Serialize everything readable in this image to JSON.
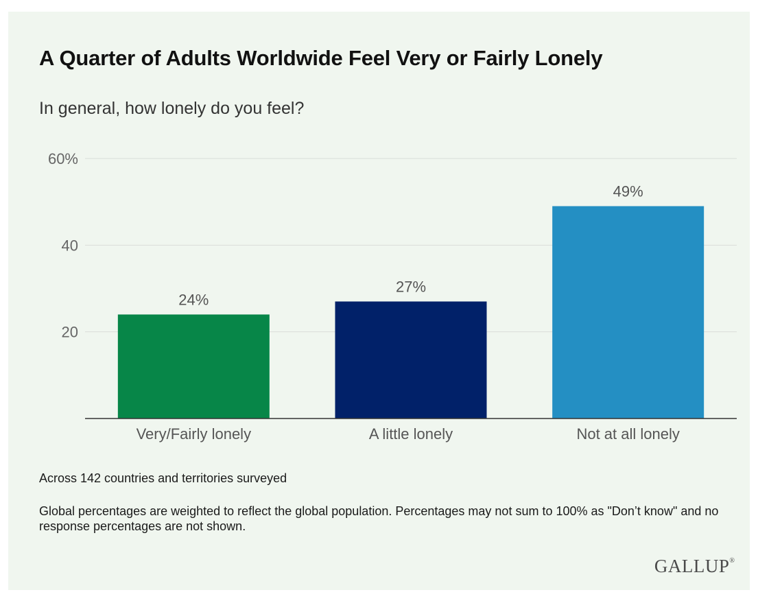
{
  "title": "A Quarter of Adults Worldwide Feel Very or Fairly Lonely",
  "subtitle": "In general, how lonely do you feel?",
  "notes": [
    "Across 142 countries and territories surveyed",
    "Global percentages are weighted to reflect the global population. Percentages may not sum to 100% as \"Don’t know\" and no response percentages are not shown."
  ],
  "brand": {
    "name": "GALLUP",
    "mark": "®"
  },
  "colors": {
    "background": "#f0f6ef",
    "gridline": "#d9ddd8",
    "axis": "#333333",
    "tick_text": "#666666",
    "label_text": "#555555"
  },
  "chart_data": {
    "type": "bar",
    "categories": [
      "Very/Fairly lonely",
      "A little lonely",
      "Not at all lonely"
    ],
    "values": [
      24,
      27,
      49
    ],
    "data_labels": [
      "24%",
      "27%",
      "49%"
    ],
    "bar_colors": [
      "#078648",
      "#012169",
      "#248fc3"
    ],
    "ylim": [
      0,
      60
    ],
    "yticks": [
      20,
      40,
      60
    ],
    "ytick_labels": [
      "20",
      "40",
      "60%"
    ],
    "grid": true,
    "legend": "none"
  }
}
